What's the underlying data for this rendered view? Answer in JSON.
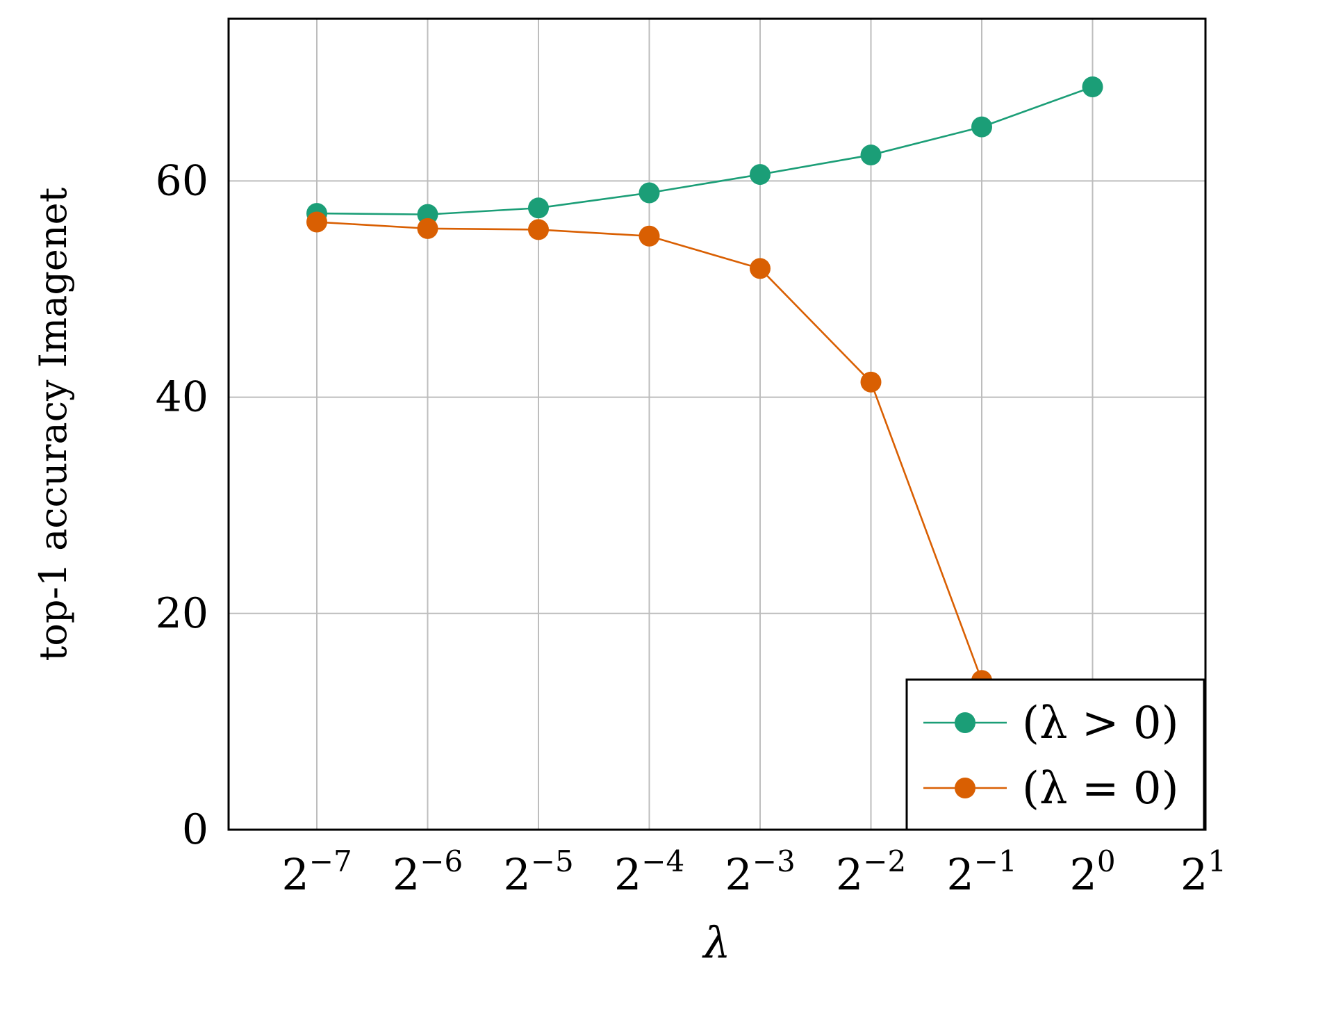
{
  "chart_data": {
    "type": "line",
    "x_scale": "log2",
    "x": [
      0.0078125,
      0.015625,
      0.03125,
      0.0625,
      0.125,
      0.25,
      0.5,
      1
    ],
    "xticks": [
      {
        "base": "2",
        "exp": "−7"
      },
      {
        "base": "2",
        "exp": "−6"
      },
      {
        "base": "2",
        "exp": "−5"
      },
      {
        "base": "2",
        "exp": "−4"
      },
      {
        "base": "2",
        "exp": "−3"
      },
      {
        "base": "2",
        "exp": "−2"
      },
      {
        "base": "2",
        "exp": "−1"
      },
      {
        "base": "2",
        "exp": "0"
      },
      {
        "base": "2",
        "exp": "1"
      }
    ],
    "yticks": [
      "0",
      "20",
      "40",
      "60"
    ],
    "xlim": [
      0.005,
      2
    ],
    "ylim": [
      0,
      75
    ],
    "xlabel": "λ",
    "ylabel": "top-1 accuracy Imagenet",
    "grid": true,
    "legend_position": "bottom-right",
    "series": [
      {
        "name": "(λ > 0)",
        "color": "#1b9e77",
        "values": [
          57.0,
          56.9,
          57.5,
          58.9,
          60.6,
          62.4,
          65.0,
          68.7
        ]
      },
      {
        "name": "(λ = 0)",
        "color": "#d95f02",
        "values": [
          56.2,
          55.6,
          55.5,
          54.9,
          51.9,
          41.4,
          13.8,
          0.8
        ]
      }
    ]
  }
}
